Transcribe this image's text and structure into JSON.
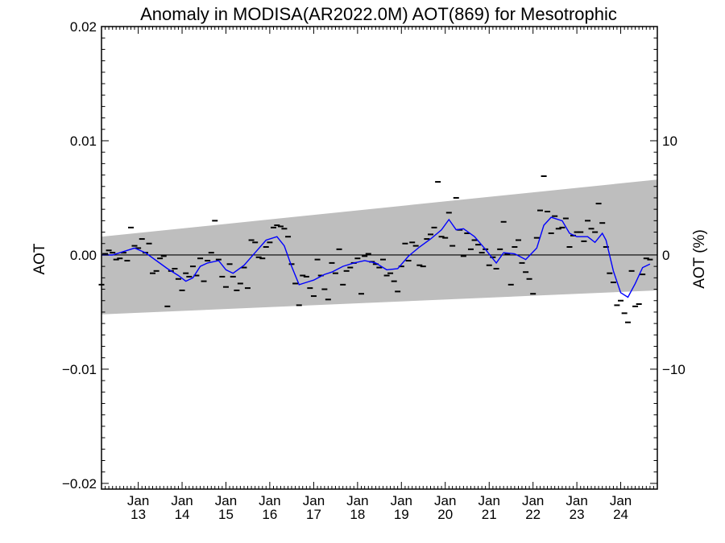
{
  "chart_data": {
    "type": "scatter",
    "title": "Anomaly in MODISA(AR2022.0M) AOT(869) for Mesotrophic",
    "ylabel": "AOT",
    "y2label": "AOT (%)",
    "xlim": [
      "2012-03-01",
      "2024-11-01"
    ],
    "ylim": [
      -0.0205,
      0.02
    ],
    "y2lim": [
      -20.5,
      20.0
    ],
    "yticks": [
      {
        "value": 0.02,
        "label": "0.02"
      },
      {
        "value": 0.01,
        "label": "0.01"
      },
      {
        "value": 0.0,
        "label": "0.00"
      },
      {
        "value": -0.01,
        "label": "−0.01"
      },
      {
        "value": -0.02,
        "label": "−0.02"
      }
    ],
    "y2ticks": [
      {
        "value": 10,
        "label": "10"
      },
      {
        "value": 0,
        "label": "0"
      },
      {
        "value": -10,
        "label": "−10"
      }
    ],
    "xticks": [
      {
        "date": "2013-01-01",
        "month": "Jan",
        "year": "13"
      },
      {
        "date": "2014-01-01",
        "month": "Jan",
        "year": "14"
      },
      {
        "date": "2015-01-01",
        "month": "Jan",
        "year": "15"
      },
      {
        "date": "2016-01-01",
        "month": "Jan",
        "year": "16"
      },
      {
        "date": "2017-01-01",
        "month": "Jan",
        "year": "17"
      },
      {
        "date": "2018-01-01",
        "month": "Jan",
        "year": "18"
      },
      {
        "date": "2019-01-01",
        "month": "Jan",
        "year": "19"
      },
      {
        "date": "2020-01-01",
        "month": "Jan",
        "year": "20"
      },
      {
        "date": "2021-01-01",
        "month": "Jan",
        "year": "21"
      },
      {
        "date": "2022-01-01",
        "month": "Jan",
        "year": "22"
      },
      {
        "date": "2023-01-01",
        "month": "Jan",
        "year": "23"
      },
      {
        "date": "2024-01-01",
        "month": "Jan",
        "year": "24"
      }
    ],
    "zero_line": 0,
    "band": {
      "color": "#bebebe",
      "start": {
        "x": "2012-03-01",
        "upper": 0.0016,
        "lower": -0.0052
      },
      "end": {
        "x": "2024-11-01",
        "upper": 0.0066,
        "lower": -0.0031
      }
    },
    "series": [
      {
        "kind": "monthly_points",
        "color": "#000000",
        "points": [
          [
            "2012-03-01",
            -0.0026
          ],
          [
            "2012-04-01",
            0.0001
          ],
          [
            "2012-05-01",
            0.0004
          ],
          [
            "2012-06-01",
            0.0002
          ],
          [
            "2012-07-01",
            -0.0004
          ],
          [
            "2012-08-01",
            -0.0003
          ],
          [
            "2012-09-01",
            0.0002
          ],
          [
            "2012-10-01",
            -0.0005
          ],
          [
            "2012-11-01",
            0.0024
          ],
          [
            "2012-12-01",
            0.0008
          ],
          [
            "2013-01-01",
            0.0006
          ],
          [
            "2013-02-01",
            0.0014
          ],
          [
            "2013-03-01",
            0.0002
          ],
          [
            "2013-04-01",
            0.001
          ],
          [
            "2013-05-01",
            -0.0016
          ],
          [
            "2013-06-01",
            -0.0014
          ],
          [
            "2013-07-01",
            -0.0003
          ],
          [
            "2013-08-01",
            -0.0001
          ],
          [
            "2013-09-01",
            -0.0045
          ],
          [
            "2013-10-01",
            -0.0014
          ],
          [
            "2013-11-01",
            -0.0012
          ],
          [
            "2013-12-01",
            -0.0021
          ],
          [
            "2014-01-01",
            -0.0031
          ],
          [
            "2014-02-01",
            -0.0016
          ],
          [
            "2014-03-01",
            -0.0019
          ],
          [
            "2014-04-01",
            -0.001
          ],
          [
            "2014-05-01",
            -0.0018
          ],
          [
            "2014-06-01",
            -0.0003
          ],
          [
            "2014-07-01",
            -0.0023
          ],
          [
            "2014-08-01",
            -0.0005
          ],
          [
            "2014-09-01",
            0.0002
          ],
          [
            "2014-10-01",
            0.003
          ],
          [
            "2014-11-01",
            -0.0004
          ],
          [
            "2014-12-01",
            -0.0019
          ],
          [
            "2015-01-01",
            -0.0028
          ],
          [
            "2015-02-01",
            -0.0008
          ],
          [
            "2015-03-01",
            -0.0019
          ],
          [
            "2015-04-01",
            -0.0031
          ],
          [
            "2015-05-01",
            -0.0025
          ],
          [
            "2015-06-01",
            -0.0011
          ],
          [
            "2015-07-01",
            -0.0029
          ],
          [
            "2015-08-01",
            0.0013
          ],
          [
            "2015-09-01",
            0.0011
          ],
          [
            "2015-10-01",
            -0.0002
          ],
          [
            "2015-11-01",
            -0.0003
          ],
          [
            "2015-12-01",
            0.0007
          ],
          [
            "2016-01-01",
            0.0011
          ],
          [
            "2016-02-01",
            0.0024
          ],
          [
            "2016-03-01",
            0.0026
          ],
          [
            "2016-04-01",
            0.0025
          ],
          [
            "2016-05-01",
            0.0023
          ],
          [
            "2016-06-01",
            0.0016
          ],
          [
            "2016-07-01",
            -0.0008
          ],
          [
            "2016-08-01",
            -0.0025
          ],
          [
            "2016-09-01",
            -0.0044
          ],
          [
            "2016-10-01",
            -0.0018
          ],
          [
            "2016-11-01",
            -0.0019
          ],
          [
            "2016-12-01",
            -0.0029
          ],
          [
            "2017-01-01",
            -0.0036
          ],
          [
            "2017-02-01",
            -0.0004
          ],
          [
            "2017-03-01",
            -0.0018
          ],
          [
            "2017-04-01",
            -0.003
          ],
          [
            "2017-05-01",
            -0.0039
          ],
          [
            "2017-06-01",
            -0.0007
          ],
          [
            "2017-07-01",
            -0.0016
          ],
          [
            "2017-08-01",
            0.0005
          ],
          [
            "2017-09-01",
            -0.0026
          ],
          [
            "2017-10-01",
            -0.0014
          ],
          [
            "2017-11-01",
            -0.0011
          ],
          [
            "2017-12-01",
            -0.0007
          ],
          [
            "2018-01-01",
            -0.0003
          ],
          [
            "2018-02-01",
            -0.0034
          ],
          [
            "2018-03-01",
            -0.0001
          ],
          [
            "2018-04-01",
            0.0001
          ],
          [
            "2018-05-01",
            -0.0006
          ],
          [
            "2018-06-01",
            -0.0008
          ],
          [
            "2018-07-01",
            -0.0011
          ],
          [
            "2018-08-01",
            -0.0004
          ],
          [
            "2018-09-01",
            -0.0018
          ],
          [
            "2018-10-01",
            -0.0016
          ],
          [
            "2018-11-01",
            -0.0023
          ],
          [
            "2018-12-01",
            -0.0032
          ],
          [
            "2019-01-01",
            -0.001
          ],
          [
            "2019-02-01",
            0.001
          ],
          [
            "2019-03-01",
            -0.0005
          ],
          [
            "2019-04-01",
            0.0011
          ],
          [
            "2019-05-01",
            0.0008
          ],
          [
            "2019-06-01",
            -0.0009
          ],
          [
            "2019-07-01",
            -0.001
          ],
          [
            "2019-08-01",
            0.0014
          ],
          [
            "2019-09-01",
            0.0018
          ],
          [
            "2019-10-01",
            0.0024
          ],
          [
            "2019-11-01",
            0.0064
          ],
          [
            "2019-12-01",
            0.0016
          ],
          [
            "2020-01-01",
            0.0015
          ],
          [
            "2020-02-01",
            0.0037
          ],
          [
            "2020-03-01",
            0.0008
          ],
          [
            "2020-04-01",
            0.005
          ],
          [
            "2020-05-01",
            0.0022
          ],
          [
            "2020-06-01",
            -0.0001
          ],
          [
            "2020-07-01",
            0.0019
          ],
          [
            "2020-08-01",
            0.0005
          ],
          [
            "2020-09-01",
            0.0013
          ],
          [
            "2020-10-01",
            0.0009
          ],
          [
            "2020-11-01",
            0.0002
          ],
          [
            "2020-12-01",
            0.0005
          ],
          [
            "2021-01-01",
            -0.0009
          ],
          [
            "2021-02-01",
            -0.0002
          ],
          [
            "2021-03-01",
            -0.0012
          ],
          [
            "2021-04-01",
            0.0005
          ],
          [
            "2021-05-01",
            0.0029
          ],
          [
            "2021-06-01",
            0.0001
          ],
          [
            "2021-07-01",
            -0.0026
          ],
          [
            "2021-08-01",
            0.0007
          ],
          [
            "2021-09-01",
            0.0013
          ],
          [
            "2021-10-01",
            -0.0007
          ],
          [
            "2021-11-01",
            -0.0015
          ],
          [
            "2021-12-01",
            -0.0021
          ],
          [
            "2022-01-01",
            -0.0034
          ],
          [
            "2022-02-01",
            0.0015
          ],
          [
            "2022-03-01",
            0.0039
          ],
          [
            "2022-04-01",
            0.0069
          ],
          [
            "2022-05-01",
            0.0038
          ],
          [
            "2022-06-01",
            0.0019
          ],
          [
            "2022-07-01",
            0.0034
          ],
          [
            "2022-08-01",
            0.0023
          ],
          [
            "2022-09-01",
            0.0024
          ],
          [
            "2022-10-01",
            0.0032
          ],
          [
            "2022-11-01",
            0.0007
          ],
          [
            "2022-12-01",
            0.0017
          ],
          [
            "2023-01-01",
            0.002
          ],
          [
            "2023-02-01",
            0.002
          ],
          [
            "2023-03-01",
            0.0012
          ],
          [
            "2023-04-01",
            0.003
          ],
          [
            "2023-05-01",
            0.0023
          ],
          [
            "2023-06-01",
            0.002
          ],
          [
            "2023-07-01",
            0.0045
          ],
          [
            "2023-08-01",
            0.0028
          ],
          [
            "2023-09-01",
            0.0007
          ],
          [
            "2023-10-01",
            -0.0016
          ],
          [
            "2023-11-01",
            -0.0024
          ],
          [
            "2023-12-01",
            -0.0044
          ],
          [
            "2024-01-01",
            -0.004
          ],
          [
            "2024-02-01",
            -0.0051
          ],
          [
            "2024-03-01",
            -0.0059
          ],
          [
            "2024-04-01",
            -0.0014
          ],
          [
            "2024-05-01",
            -0.0045
          ],
          [
            "2024-06-01",
            -0.0043
          ],
          [
            "2024-07-01",
            -0.0017
          ],
          [
            "2024-08-01",
            -0.0003
          ],
          [
            "2024-09-01",
            -0.0004
          ]
        ]
      },
      {
        "kind": "running_mean",
        "color": "#0000ff",
        "points": [
          [
            "2012-03-01",
            0.0
          ],
          [
            "2012-06-01",
            0.0
          ],
          [
            "2012-09-01",
            0.0003
          ],
          [
            "2012-12-01",
            0.0006
          ],
          [
            "2013-03-01",
            0.0002
          ],
          [
            "2013-06-01",
            -0.0005
          ],
          [
            "2013-09-01",
            -0.0012
          ],
          [
            "2013-12-01",
            -0.0018
          ],
          [
            "2014-02-01",
            -0.0023
          ],
          [
            "2014-04-01",
            -0.002
          ],
          [
            "2014-06-01",
            -0.001
          ],
          [
            "2014-08-01",
            -0.0007
          ],
          [
            "2014-11-01",
            -0.0005
          ],
          [
            "2015-01-01",
            -0.0013
          ],
          [
            "2015-03-01",
            -0.0016
          ],
          [
            "2015-06-01",
            -0.0009
          ],
          [
            "2015-09-01",
            0.0002
          ],
          [
            "2015-12-01",
            0.0013
          ],
          [
            "2016-03-01",
            0.0016
          ],
          [
            "2016-05-01",
            0.0008
          ],
          [
            "2016-07-01",
            -0.001
          ],
          [
            "2016-09-01",
            -0.0026
          ],
          [
            "2016-11-01",
            -0.0024
          ],
          [
            "2017-01-01",
            -0.0022
          ],
          [
            "2017-04-01",
            -0.0017
          ],
          [
            "2017-06-01",
            -0.0015
          ],
          [
            "2017-09-01",
            -0.001
          ],
          [
            "2017-12-01",
            -0.0007
          ],
          [
            "2018-03-01",
            -0.0005
          ],
          [
            "2018-06-01",
            -0.0007
          ],
          [
            "2018-09-01",
            -0.0013
          ],
          [
            "2018-12-01",
            -0.0012
          ],
          [
            "2019-03-01",
            -0.0001
          ],
          [
            "2019-06-01",
            0.0007
          ],
          [
            "2019-09-01",
            0.0014
          ],
          [
            "2019-12-01",
            0.0022
          ],
          [
            "2020-02-01",
            0.0031
          ],
          [
            "2020-04-01",
            0.0022
          ],
          [
            "2020-06-01",
            0.0023
          ],
          [
            "2020-09-01",
            0.0016
          ],
          [
            "2020-12-01",
            0.0005
          ],
          [
            "2021-03-01",
            -0.0007
          ],
          [
            "2021-05-01",
            0.0002
          ],
          [
            "2021-08-01",
            0.0001
          ],
          [
            "2021-11-01",
            -0.0004
          ],
          [
            "2022-02-01",
            0.0006
          ],
          [
            "2022-04-01",
            0.0026
          ],
          [
            "2022-06-01",
            0.0033
          ],
          [
            "2022-09-01",
            0.003
          ],
          [
            "2022-11-01",
            0.0019
          ],
          [
            "2023-01-01",
            0.0016
          ],
          [
            "2023-04-01",
            0.0016
          ],
          [
            "2023-06-01",
            0.0011
          ],
          [
            "2023-08-01",
            0.0019
          ],
          [
            "2023-09-01",
            0.0013
          ],
          [
            "2023-11-01",
            -0.0014
          ],
          [
            "2024-01-01",
            -0.0033
          ],
          [
            "2024-03-01",
            -0.0037
          ],
          [
            "2024-05-01",
            -0.0025
          ],
          [
            "2024-07-01",
            -0.0011
          ],
          [
            "2024-09-01",
            -0.0008
          ]
        ]
      }
    ]
  }
}
